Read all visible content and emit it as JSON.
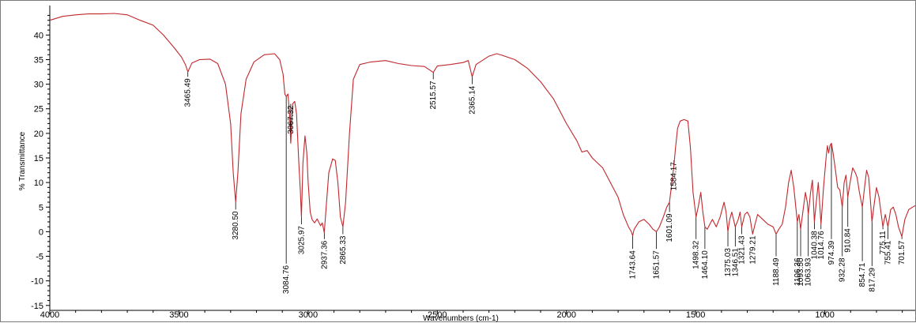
{
  "chart_data": {
    "type": "line",
    "title": "",
    "xlabel": "Wavenumbers (cm-1)",
    "ylabel": "% Transmittance",
    "xlim": [
      4000,
      650
    ],
    "ylim": [
      -16,
      46
    ],
    "x_reversed": true,
    "x_ticks": [
      4000,
      3500,
      3000,
      2500,
      2000,
      1500,
      1000
    ],
    "x_tick_labels": [
      "4000",
      "3500",
      "3000",
      "2500",
      "2000",
      "1500",
      "1000"
    ],
    "y_ticks": [
      -15,
      -10,
      -5,
      0,
      5,
      10,
      15,
      20,
      25,
      30,
      35,
      40
    ],
    "y_tick_labels": [
      "-15",
      "-10",
      "-5",
      "0",
      "5",
      "10",
      "15",
      "20",
      "25",
      "30",
      "35",
      "40"
    ],
    "line_color": "#c0282d",
    "grid": false,
    "series": [
      {
        "points": [
          [
            4000,
            43.0
          ],
          [
            3950,
            43.8
          ],
          [
            3900,
            44.1
          ],
          [
            3850,
            44.3
          ],
          [
            3800,
            44.3
          ],
          [
            3750,
            44.4
          ],
          [
            3700,
            44.1
          ],
          [
            3650,
            43.0
          ],
          [
            3600,
            42.0
          ],
          [
            3560,
            40.0
          ],
          [
            3520,
            37.5
          ],
          [
            3490,
            35.5
          ],
          [
            3475,
            34.0
          ],
          [
            3465.49,
            32.5
          ],
          [
            3450,
            34.3
          ],
          [
            3420,
            35.0
          ],
          [
            3380,
            35.1
          ],
          [
            3350,
            34.2
          ],
          [
            3320,
            30.0
          ],
          [
            3300,
            22.0
          ],
          [
            3290,
            12.0
          ],
          [
            3280.5,
            6.0
          ],
          [
            3272,
            12.0
          ],
          [
            3260,
            24.0
          ],
          [
            3240,
            31.0
          ],
          [
            3210,
            34.5
          ],
          [
            3170,
            36.0
          ],
          [
            3130,
            36.2
          ],
          [
            3110,
            35.0
          ],
          [
            3097,
            32.0
          ],
          [
            3090,
            28.0
          ],
          [
            3084.76,
            27.5
          ],
          [
            3078,
            28.0
          ],
          [
            3072,
            24.0
          ],
          [
            3067.32,
            18.0
          ],
          [
            3060,
            26.0
          ],
          [
            3052,
            26.5
          ],
          [
            3045,
            24.0
          ],
          [
            3036,
            14.0
          ],
          [
            3030,
            8.0
          ],
          [
            3025.97,
            3.0
          ],
          [
            3020,
            14.0
          ],
          [
            3012,
            19.5
          ],
          [
            3005,
            16.0
          ],
          [
            3000,
            10.0
          ],
          [
            2992,
            4.0
          ],
          [
            2985,
            2.5
          ],
          [
            2975,
            1.8
          ],
          [
            2965,
            2.6
          ],
          [
            2952,
            1.2
          ],
          [
            2945,
            1.8
          ],
          [
            2937.36,
            -0.2
          ],
          [
            2930,
            5.0
          ],
          [
            2920,
            12.0
          ],
          [
            2905,
            14.8
          ],
          [
            2895,
            14.5
          ],
          [
            2885,
            10.0
          ],
          [
            2875,
            3.0
          ],
          [
            2865.33,
            1.0
          ],
          [
            2855,
            6.0
          ],
          [
            2840,
            20.0
          ],
          [
            2825,
            31.0
          ],
          [
            2800,
            34.0
          ],
          [
            2760,
            34.5
          ],
          [
            2700,
            34.8
          ],
          [
            2650,
            34.2
          ],
          [
            2600,
            33.8
          ],
          [
            2550,
            33.6
          ],
          [
            2515.57,
            32.4
          ],
          [
            2500,
            33.7
          ],
          [
            2450,
            34.0
          ],
          [
            2400,
            34.4
          ],
          [
            2380,
            34.8
          ],
          [
            2365.14,
            31.5
          ],
          [
            2350,
            34.0
          ],
          [
            2300,
            35.7
          ],
          [
            2270,
            36.2
          ],
          [
            2250,
            35.9
          ],
          [
            2200,
            35.0
          ],
          [
            2150,
            33.2
          ],
          [
            2100,
            30.5
          ],
          [
            2050,
            27.0
          ],
          [
            2000,
            22.0
          ],
          [
            1960,
            18.5
          ],
          [
            1940,
            16.2
          ],
          [
            1920,
            16.5
          ],
          [
            1900,
            15.0
          ],
          [
            1860,
            13.0
          ],
          [
            1830,
            10.0
          ],
          [
            1800,
            7.0
          ],
          [
            1780,
            3.5
          ],
          [
            1760,
            1.0
          ],
          [
            1749,
            0.0
          ],
          [
            1743.64,
            -0.8
          ],
          [
            1738,
            0.5
          ],
          [
            1720,
            2.0
          ],
          [
            1700,
            2.5
          ],
          [
            1680,
            1.5
          ],
          [
            1665,
            0.5
          ],
          [
            1651.57,
            0.0
          ],
          [
            1640,
            1.0
          ],
          [
            1625,
            3.0
          ],
          [
            1612,
            5.0
          ],
          [
            1601.09,
            6.0
          ],
          [
            1592,
            10.0
          ],
          [
            1584.17,
            13.5
          ],
          [
            1578,
            17.0
          ],
          [
            1570,
            21.0
          ],
          [
            1560,
            22.5
          ],
          [
            1545,
            22.8
          ],
          [
            1530,
            22.5
          ],
          [
            1520,
            17.0
          ],
          [
            1510,
            8.0
          ],
          [
            1498.32,
            3.0
          ],
          [
            1490,
            5.0
          ],
          [
            1480,
            8.0
          ],
          [
            1472,
            4.0
          ],
          [
            1464.1,
            1.0
          ],
          [
            1455,
            0.5
          ],
          [
            1445,
            1.5
          ],
          [
            1435,
            2.5
          ],
          [
            1420,
            1.0
          ],
          [
            1405,
            3.0
          ],
          [
            1390,
            6.0
          ],
          [
            1382,
            4.0
          ],
          [
            1375.03,
            0.0
          ],
          [
            1368,
            2.5
          ],
          [
            1360,
            4.0
          ],
          [
            1346.51,
            1.0
          ],
          [
            1335,
            2.5
          ],
          [
            1328,
            4.0
          ],
          [
            1321.43,
            1.0
          ],
          [
            1310,
            3.5
          ],
          [
            1300,
            4.0
          ],
          [
            1290,
            3.0
          ],
          [
            1279.21,
            -0.5
          ],
          [
            1270,
            1.5
          ],
          [
            1260,
            3.5
          ],
          [
            1240,
            2.5
          ],
          [
            1220,
            1.5
          ],
          [
            1200,
            1.0
          ],
          [
            1188.49,
            -0.5
          ],
          [
            1178,
            0.5
          ],
          [
            1165,
            1.5
          ],
          [
            1152,
            5.0
          ],
          [
            1140,
            10.0
          ],
          [
            1130,
            12.5
          ],
          [
            1120,
            9.0
          ],
          [
            1106.36,
            2.0
          ],
          [
            1100,
            3.5
          ],
          [
            1093.5,
            0.5
          ],
          [
            1085,
            4.0
          ],
          [
            1075,
            8.0
          ],
          [
            1068,
            6.0
          ],
          [
            1063.93,
            3.5
          ],
          [
            1055,
            8.0
          ],
          [
            1048,
            10.5
          ],
          [
            1040.38,
            2.0
          ],
          [
            1035,
            5.0
          ],
          [
            1025,
            10.0
          ],
          [
            1014.76,
            1.5
          ],
          [
            1005,
            9.0
          ],
          [
            995,
            15.0
          ],
          [
            990,
            17.5
          ],
          [
            985,
            16.0
          ],
          [
            980,
            17.5
          ],
          [
            974.39,
            18.0
          ],
          [
            968,
            16.0
          ],
          [
            960,
            13.0
          ],
          [
            950,
            9.0
          ],
          [
            942,
            8.5
          ],
          [
            932.28,
            5.0
          ],
          [
            925,
            10.0
          ],
          [
            918,
            11.5
          ],
          [
            910.84,
            7.0
          ],
          [
            902,
            10.0
          ],
          [
            892,
            13.0
          ],
          [
            882,
            12.0
          ],
          [
            875,
            11.0
          ],
          [
            866,
            8.0
          ],
          [
            854.71,
            5.0
          ],
          [
            846,
            9.0
          ],
          [
            838,
            12.5
          ],
          [
            830,
            11.0
          ],
          [
            817.29,
            2.0
          ],
          [
            808,
            6.0
          ],
          [
            800,
            9.0
          ],
          [
            790,
            7.0
          ],
          [
            775.11,
            1.0
          ],
          [
            766,
            3.5
          ],
          [
            755.41,
            1.0
          ],
          [
            745,
            4.5
          ],
          [
            735,
            5.0
          ],
          [
            725,
            3.5
          ],
          [
            715,
            1.0
          ],
          [
            701.57,
            -1.0
          ],
          [
            690,
            2.5
          ],
          [
            675,
            4.5
          ],
          [
            660,
            5.0
          ],
          [
            650,
            5.3
          ]
        ]
      }
    ],
    "peak_labels": [
      {
        "label": "3465.49",
        "x": 3465.49,
        "y": 32.5,
        "text_at": 31.5
      },
      {
        "label": "3280.50",
        "x": 3280.5,
        "y": 6.0,
        "text_at": 4.5
      },
      {
        "label": "3084.76",
        "x": 3084.76,
        "y": 27.5,
        "text_at": -6.5
      },
      {
        "label": "3067.32",
        "x": 3067.32,
        "y": 18.0,
        "text_at": 26.0
      },
      {
        "label": "3025.97",
        "x": 3025.97,
        "y": 3.0,
        "text_at": 1.5
      },
      {
        "label": "2937.36",
        "x": 2937.36,
        "y": -0.2,
        "text_at": -1.5
      },
      {
        "label": "2865.33",
        "x": 2865.33,
        "y": 1.0,
        "text_at": -0.5
      },
      {
        "label": "2515.57",
        "x": 2515.57,
        "y": 32.4,
        "text_at": 31.0
      },
      {
        "label": "2365.14",
        "x": 2365.14,
        "y": 31.5,
        "text_at": 30.0
      },
      {
        "label": "1601.09",
        "x": 1601.09,
        "y": 6.0,
        "text_at": 4.0
      },
      {
        "label": "1584.17",
        "x": 1584.17,
        "y": 13.5,
        "text_at": 14.5
      },
      {
        "label": "1743.64",
        "x": 1743.64,
        "y": -0.8,
        "text_at": -3.5
      },
      {
        "label": "1651.57",
        "x": 1651.57,
        "y": 0.0,
        "text_at": -3.5
      },
      {
        "label": "1498.32",
        "x": 1498.32,
        "y": 3.0,
        "text_at": -1.5
      },
      {
        "label": "1464.10",
        "x": 1464.1,
        "y": 1.0,
        "text_at": -3.5
      },
      {
        "label": "1375.03",
        "x": 1375.03,
        "y": 0.0,
        "text_at": -3.0
      },
      {
        "label": "1346.51",
        "x": 1346.51,
        "y": 1.0,
        "text_at": -3.0
      },
      {
        "label": "1321.43",
        "x": 1321.43,
        "y": 1.0,
        "text_at": -0.5
      },
      {
        "label": "1279.21",
        "x": 1279.21,
        "y": -0.5,
        "text_at": -0.5
      },
      {
        "label": "1188.49",
        "x": 1188.49,
        "y": -0.5,
        "text_at": -5.0
      },
      {
        "label": "1106.36",
        "x": 1106.36,
        "y": 2.0,
        "text_at": -5.0
      },
      {
        "label": "1093.50",
        "x": 1093.5,
        "y": 0.5,
        "text_at": -5.0
      },
      {
        "label": "1063.93",
        "x": 1063.93,
        "y": 3.5,
        "text_at": -5.0
      },
      {
        "label": "1040.38",
        "x": 1040.38,
        "y": 2.0,
        "text_at": 0.5
      },
      {
        "label": "1014.76",
        "x": 1014.76,
        "y": 1.5,
        "text_at": 0.5
      },
      {
        "label": "974.39",
        "x": 974.39,
        "y": 18.0,
        "text_at": -1.5
      },
      {
        "label": "932.28",
        "x": 932.28,
        "y": 5.0,
        "text_at": -5.0
      },
      {
        "label": "910.84",
        "x": 910.84,
        "y": 7.0,
        "text_at": 1.0
      },
      {
        "label": "854.71",
        "x": 854.71,
        "y": 5.0,
        "text_at": -6.0
      },
      {
        "label": "817.29",
        "x": 817.29,
        "y": 2.0,
        "text_at": -7.0
      },
      {
        "label": "775.11",
        "x": 775.11,
        "y": 1.0,
        "text_at": 0.5
      },
      {
        "label": "755.41",
        "x": 755.41,
        "y": 1.0,
        "text_at": -1.5
      },
      {
        "label": "701.57",
        "x": 701.57,
        "y": -1.0,
        "text_at": -1.5
      }
    ]
  }
}
